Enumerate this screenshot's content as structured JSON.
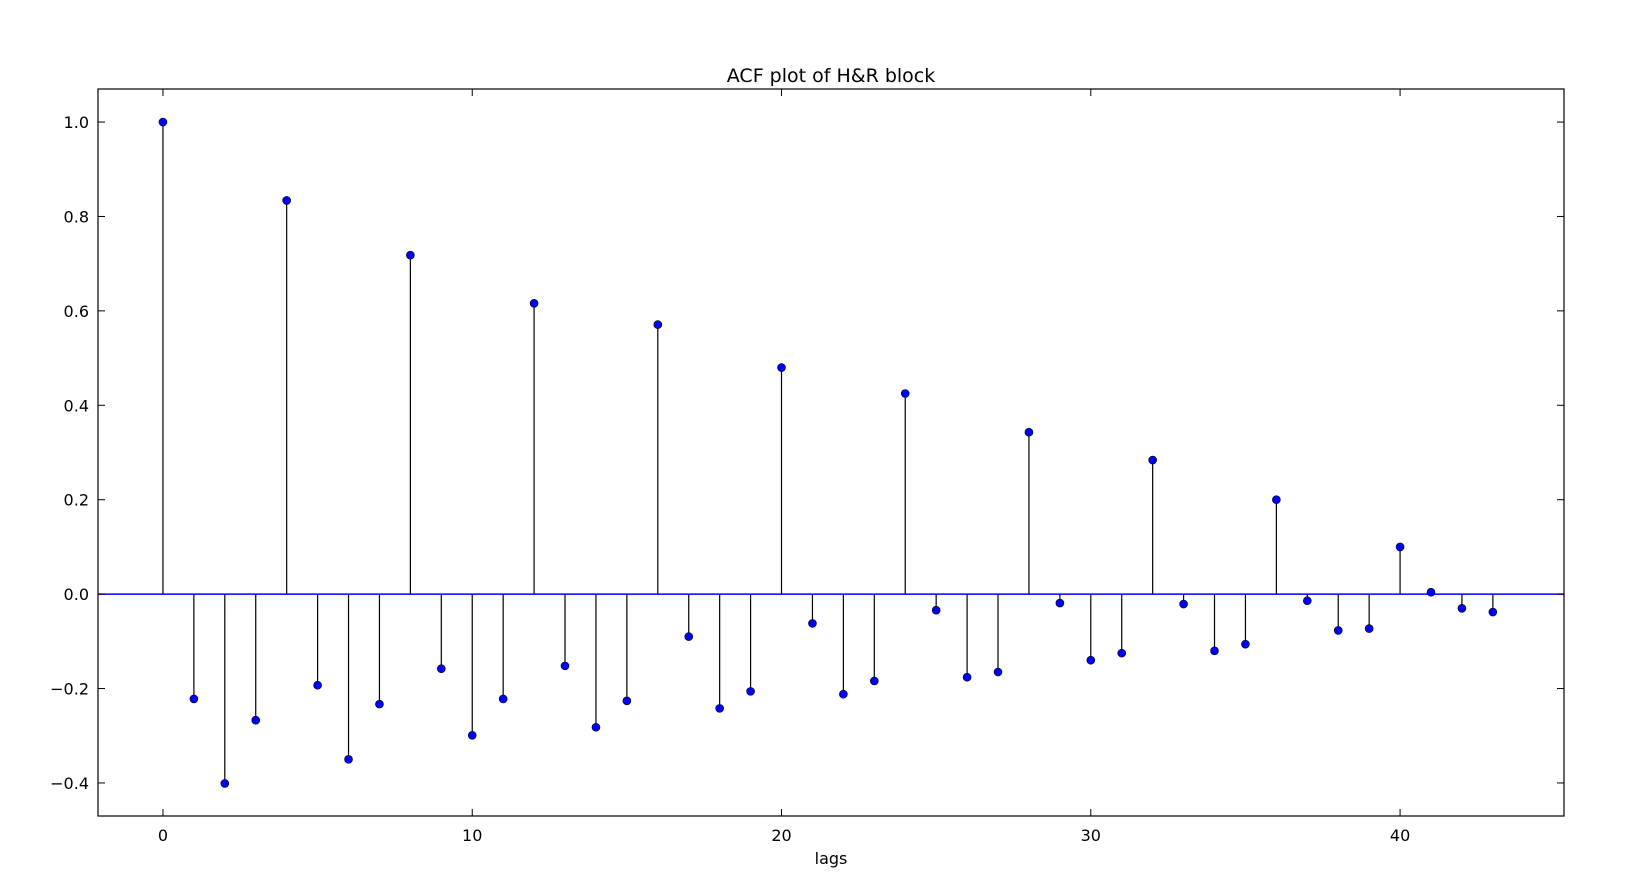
{
  "chart_data": {
    "type": "stem",
    "title": "ACF plot of H&R block",
    "xlabel": "lags",
    "ylabel": "",
    "xlim": [
      -2.1,
      45.3
    ],
    "ylim": [
      -0.47,
      1.07
    ],
    "xticks": [
      0,
      10,
      20,
      30,
      40
    ],
    "yticks": [
      1.0,
      0.8,
      0.6,
      0.4,
      0.2,
      0.0,
      -0.2,
      -0.4
    ],
    "xtick_labels": [
      "0",
      "10",
      "20",
      "30",
      "40"
    ],
    "ytick_labels": [
      "1.0",
      "0.8",
      "0.6",
      "0.4",
      "0.2",
      "0.0",
      "−0.2",
      "−0.4"
    ],
    "baseline": 0.0,
    "grid": false,
    "colors": {
      "marker": "#0000ff",
      "stem": "#000000",
      "baseline": "#0000ff",
      "axes": "#000000"
    },
    "x": [
      0,
      1,
      2,
      3,
      4,
      5,
      6,
      7,
      8,
      9,
      10,
      11,
      12,
      13,
      14,
      15,
      16,
      17,
      18,
      19,
      20,
      21,
      22,
      23,
      24,
      25,
      26,
      27,
      28,
      29,
      30,
      31,
      32,
      33,
      34,
      35,
      36,
      37,
      38,
      39,
      40,
      41,
      42,
      43
    ],
    "values": [
      1.0,
      -0.222,
      -0.401,
      -0.267,
      0.834,
      -0.193,
      -0.35,
      -0.233,
      0.718,
      -0.158,
      -0.299,
      -0.222,
      0.616,
      -0.152,
      -0.282,
      -0.226,
      0.571,
      -0.09,
      -0.242,
      -0.206,
      0.48,
      -0.062,
      -0.212,
      -0.184,
      0.425,
      -0.034,
      -0.176,
      -0.165,
      0.343,
      -0.019,
      -0.14,
      -0.125,
      0.284,
      -0.021,
      -0.12,
      -0.106,
      0.2,
      -0.014,
      -0.077,
      -0.073,
      0.1,
      0.004,
      -0.03,
      -0.038
    ]
  }
}
